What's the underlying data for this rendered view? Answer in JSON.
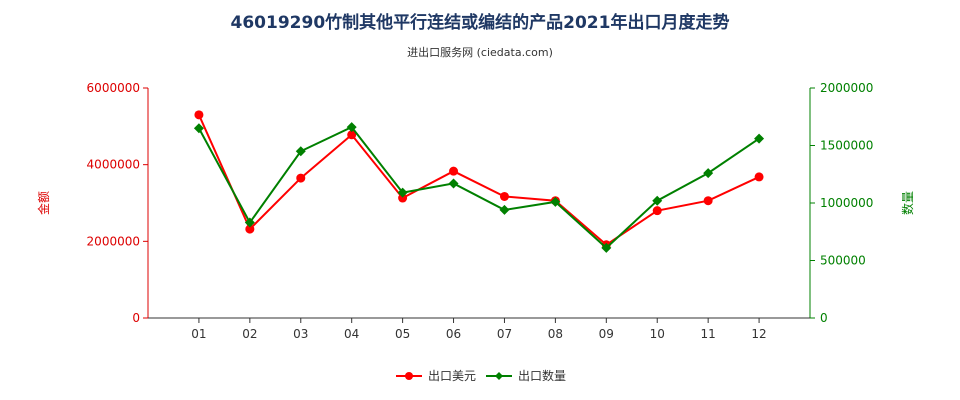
{
  "chart_data": {
    "type": "line",
    "title": "46019290竹制其他平行连结或编结的产品2021年出口月度走势",
    "subtitle": "进出口服务网 (ciedata.com)",
    "categories": [
      "01",
      "02",
      "03",
      "04",
      "05",
      "06",
      "07",
      "08",
      "09",
      "10",
      "11",
      "12"
    ],
    "y_left": {
      "label": "金额",
      "ticks": [
        "0",
        "2000000",
        "4000000",
        "6000000"
      ],
      "range": [
        0,
        6000000
      ],
      "color": "#dd0000"
    },
    "y_right": {
      "label": "数量",
      "ticks": [
        "0",
        "500000",
        "1000000",
        "1500000",
        "2000000"
      ],
      "range": [
        0,
        2000000
      ],
      "color": "#008000"
    },
    "series": [
      {
        "name": "出口美元",
        "axis": "left",
        "color": "#ff0000",
        "values": [
          5300000,
          2320000,
          3650000,
          4780000,
          3130000,
          3830000,
          3170000,
          3060000,
          1910000,
          2800000,
          3060000,
          3680000
        ]
      },
      {
        "name": "出口数量",
        "axis": "right",
        "color": "#008000",
        "values": [
          1650000,
          830000,
          1450000,
          1660000,
          1090000,
          1170000,
          940000,
          1010000,
          610000,
          1020000,
          1260000,
          1560000
        ]
      }
    ],
    "grid": false,
    "legend_position": "bottom"
  }
}
